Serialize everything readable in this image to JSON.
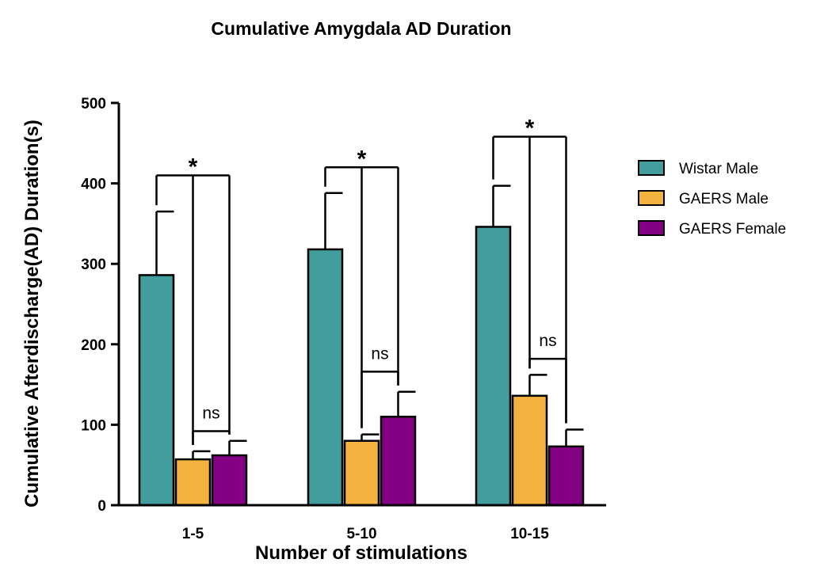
{
  "chart_data": {
    "type": "bar",
    "title": "Cumulative Amygdala AD Duration",
    "xlabel": "Number of stimulations",
    "ylabel": "Cumulative Afterdischarge(AD) Duration(s)",
    "ylim": [
      0,
      500
    ],
    "yticks": [
      0,
      100,
      200,
      300,
      400,
      500
    ],
    "categories": [
      "1-5",
      "5-10",
      "10-15"
    ],
    "series": [
      {
        "name": "Wistar Male",
        "color": "#419E9C",
        "values": [
          286,
          318,
          346
        ],
        "errors": [
          79,
          70,
          51
        ]
      },
      {
        "name": "GAERS Male",
        "color": "#F4B23F",
        "values": [
          57,
          80,
          136
        ],
        "errors": [
          10,
          8,
          26
        ]
      },
      {
        "name": "GAERS Female",
        "color": "#820081",
        "values": [
          62,
          110,
          73
        ],
        "errors": [
          18,
          31,
          21
        ]
      }
    ],
    "grid": false,
    "legend_position": "right",
    "annotations": {
      "significance": [
        {
          "category": "1-5",
          "label": "*",
          "from_series": 0,
          "to_series": [
            1,
            2
          ],
          "level": 410
        },
        {
          "category": "1-5",
          "label": "ns",
          "from_series": 1,
          "to_series": [
            2
          ],
          "level": 92
        },
        {
          "category": "5-10",
          "label": "*",
          "from_series": 0,
          "to_series": [
            1,
            2
          ],
          "level": 420
        },
        {
          "category": "5-10",
          "label": "ns",
          "from_series": 1,
          "to_series": [
            2
          ],
          "level": 166
        },
        {
          "category": "10-15",
          "label": "*",
          "from_series": 0,
          "to_series": [
            1,
            2
          ],
          "level": 458
        },
        {
          "category": "10-15",
          "label": "ns",
          "from_series": 1,
          "to_series": [
            2
          ],
          "level": 182
        }
      ]
    }
  }
}
